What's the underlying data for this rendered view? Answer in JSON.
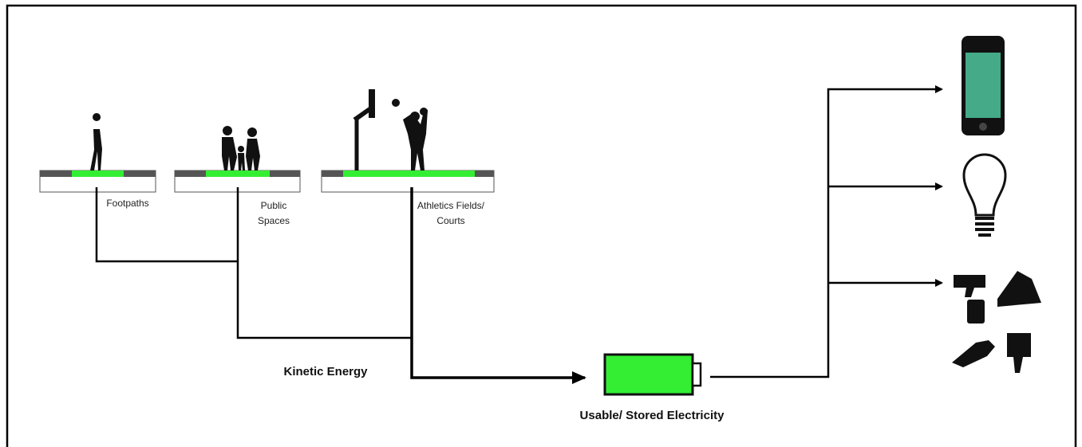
{
  "sources": [
    {
      "lines": [
        "Footpaths"
      ]
    },
    {
      "lines": [
        "Public",
        "Spaces"
      ]
    },
    {
      "lines": [
        "Athletics Fields/",
        "Courts"
      ]
    }
  ],
  "flow_label": "Kinetic Energy",
  "storage_label": "Usable/ Stored Electricity"
}
